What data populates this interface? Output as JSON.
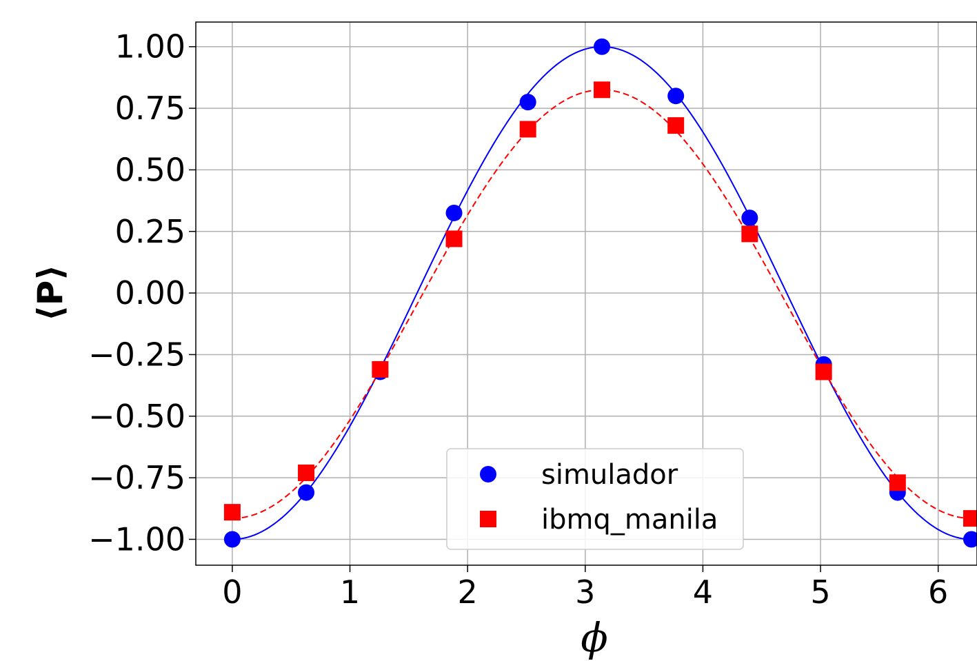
{
  "chart_data": {
    "type": "line",
    "title": "",
    "xlabel": "ϕ",
    "ylabel": "⟨P⟩",
    "xlim": [
      -0.31,
      6.33
    ],
    "ylim": [
      -1.105,
      1.1
    ],
    "x_ticks": [
      0,
      1,
      2,
      3,
      4,
      5,
      6
    ],
    "x_tick_labels": [
      "0",
      "1",
      "2",
      "3",
      "4",
      "5",
      "6"
    ],
    "y_ticks": [
      1.0,
      0.75,
      0.5,
      0.25,
      0.0,
      -0.25,
      -0.5,
      -0.75,
      -1.0
    ],
    "y_tick_labels": [
      "1.00",
      "0.75",
      "0.50",
      "0.25",
      "0.00",
      "−0.25",
      "−0.50",
      "−0.75",
      "−1.00"
    ],
    "grid": true,
    "legend_position": "lower-center",
    "series": [
      {
        "name": "simulador",
        "marker": "circle",
        "line_style": "solid",
        "color": "#0000ff",
        "x": [
          0.0,
          0.628,
          1.257,
          1.885,
          2.513,
          3.142,
          3.77,
          4.398,
          5.027,
          5.655,
          6.283
        ],
        "y": [
          -1.0,
          -0.81,
          -0.32,
          0.325,
          0.775,
          1.0,
          0.8,
          0.305,
          -0.29,
          -0.81,
          -1.0
        ],
        "fit": {
          "kind": "cosine",
          "amplitude": 1.0,
          "offset": 0.0
        }
      },
      {
        "name": "ibmq_manila",
        "marker": "square",
        "line_style": "dashed",
        "color": "#ff0000",
        "x": [
          0.0,
          0.628,
          1.257,
          1.885,
          2.513,
          3.142,
          3.77,
          4.398,
          5.027,
          5.655,
          6.283
        ],
        "y": [
          -0.89,
          -0.73,
          -0.31,
          0.22,
          0.665,
          0.825,
          0.68,
          0.24,
          -0.32,
          -0.77,
          -0.915
        ],
        "fit": {
          "kind": "cosine",
          "amplitude": 0.87,
          "offset": -0.045
        }
      }
    ]
  }
}
